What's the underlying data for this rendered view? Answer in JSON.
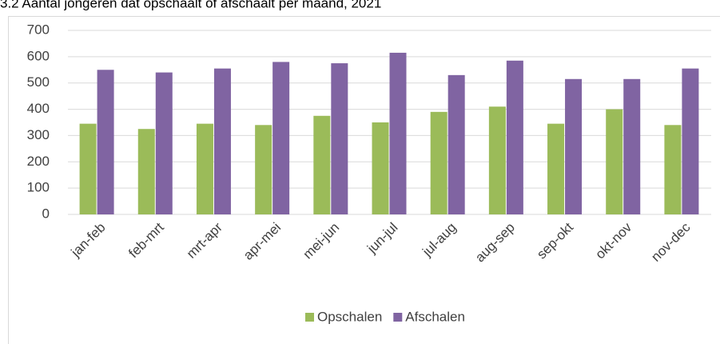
{
  "chart_data": {
    "type": "bar",
    "title": "3.2 Aantal jongeren dat opschaalt of afschaalt per maand, 2021",
    "categories": [
      "jan-feb",
      "feb-mrt",
      "mrt-apr",
      "apr-mei",
      "mei-jun",
      "jun-jul",
      "jul-aug",
      "aug-sep",
      "sep-okt",
      "okt-nov",
      "nov-dec"
    ],
    "series": [
      {
        "name": "Opschalen",
        "color": "#9bbb59",
        "values": [
          345,
          325,
          345,
          340,
          375,
          350,
          390,
          410,
          345,
          400,
          340
        ]
      },
      {
        "name": "Afschalen",
        "color": "#8064a2",
        "values": [
          550,
          540,
          555,
          580,
          575,
          615,
          530,
          585,
          515,
          515,
          555
        ]
      }
    ],
    "ylim": [
      0,
      700
    ],
    "yticks": [
      0,
      100,
      200,
      300,
      400,
      500,
      600,
      700
    ],
    "grid": true,
    "legend": "bottom"
  }
}
